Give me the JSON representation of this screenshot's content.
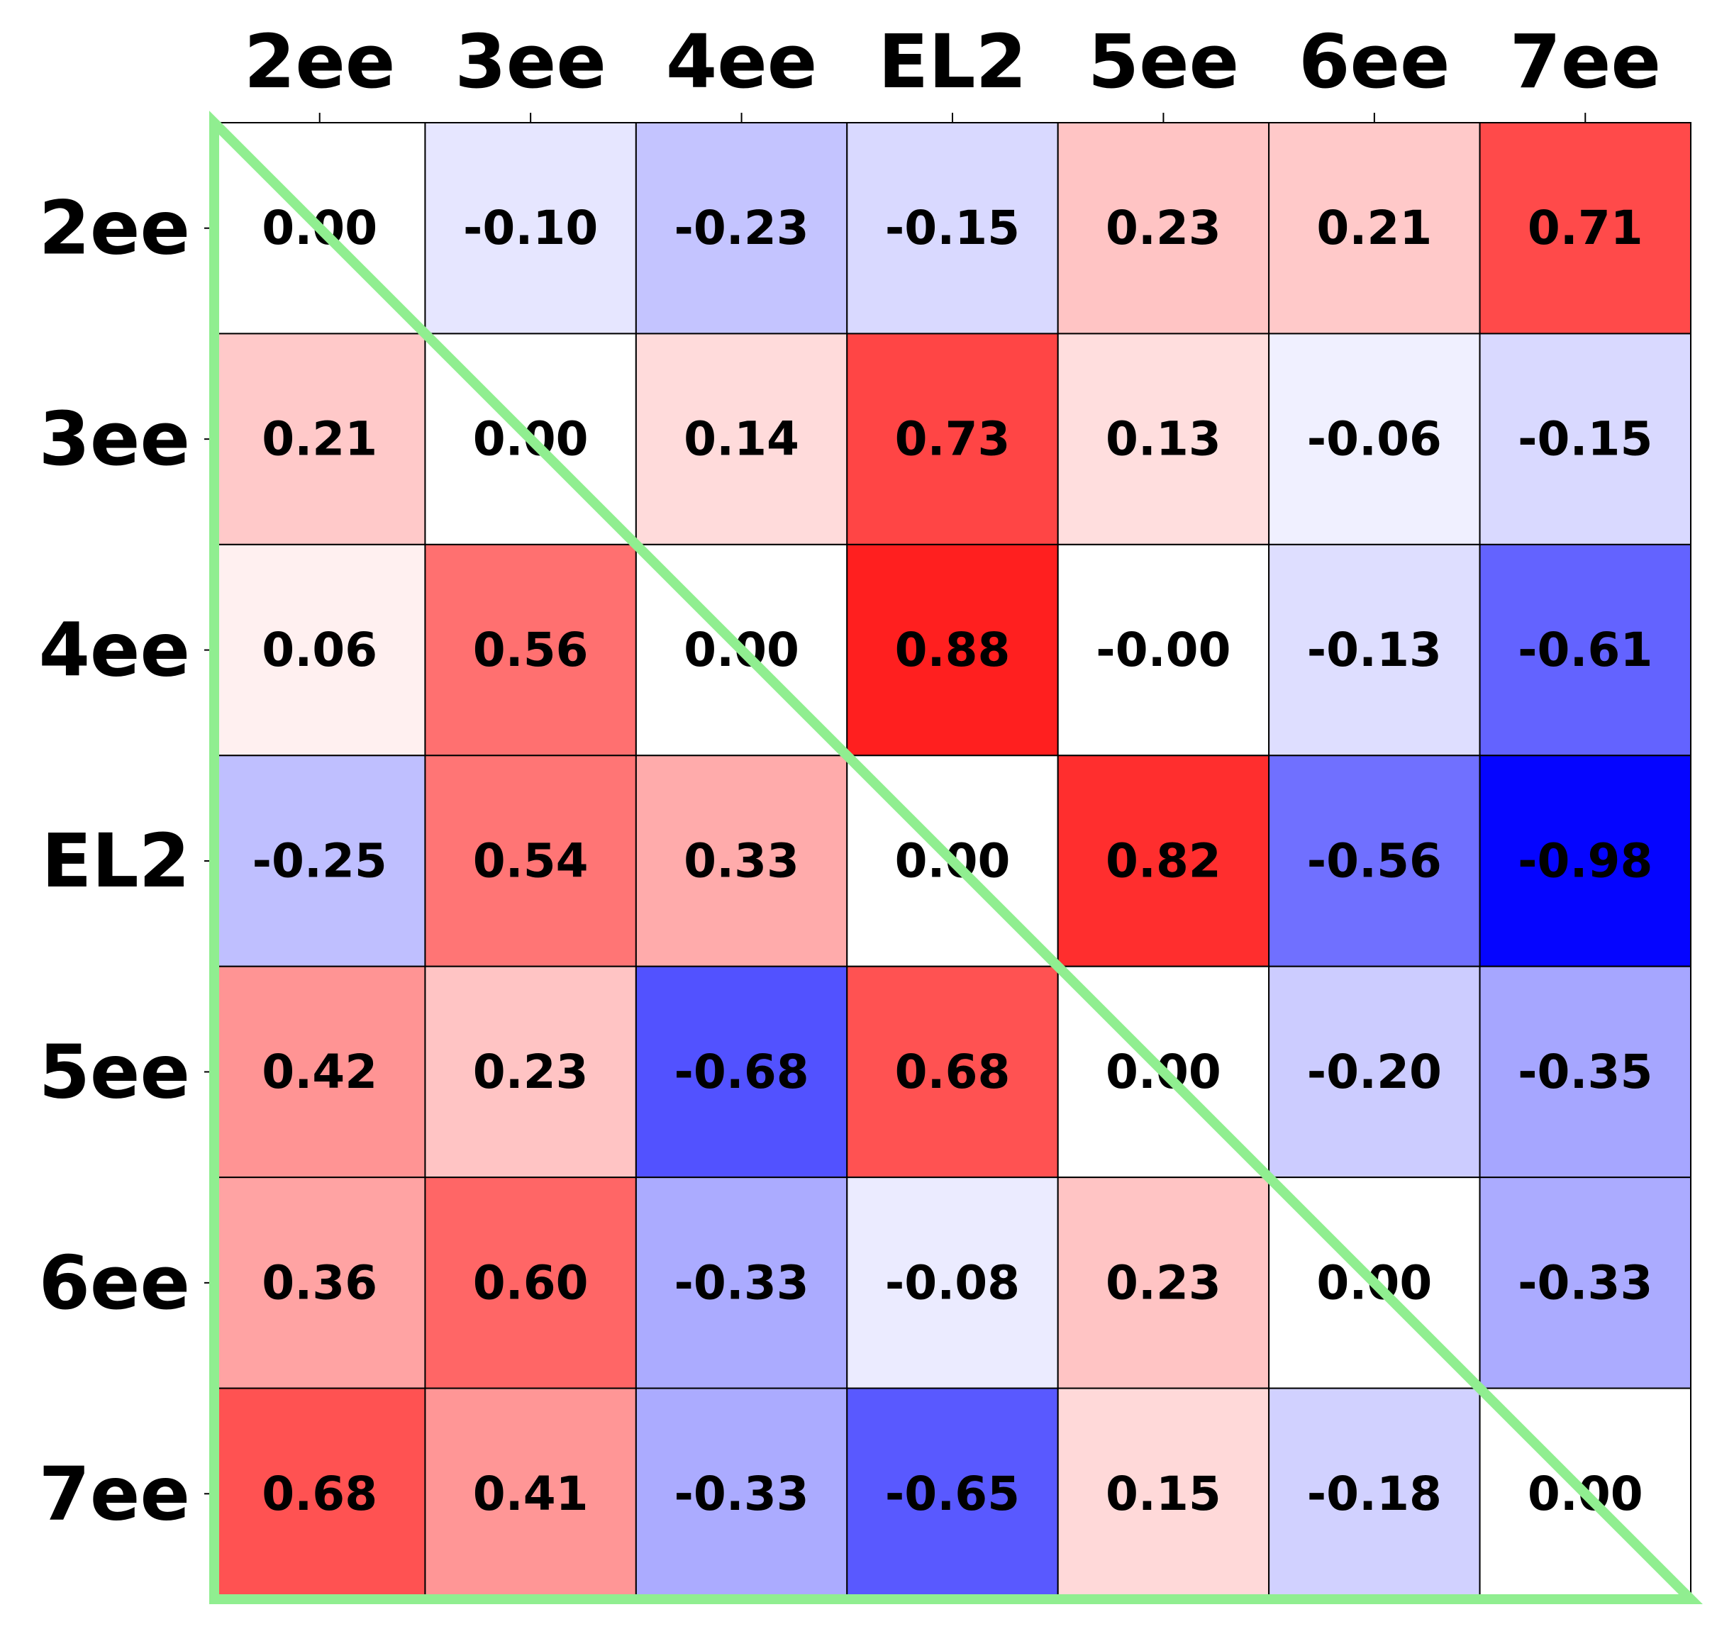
{
  "chart_data": {
    "type": "heatmap",
    "title": "",
    "xlabel": "",
    "ylabel": "",
    "x_categories": [
      "2ee",
      "3ee",
      "4ee",
      "EL2",
      "5ee",
      "6ee",
      "7ee"
    ],
    "y_categories": [
      "2ee",
      "3ee",
      "4ee",
      "EL2",
      "5ee",
      "6ee",
      "7ee"
    ],
    "x_tick_position": "top",
    "values": [
      [
        0.0,
        -0.1,
        -0.23,
        -0.15,
        0.23,
        0.21,
        0.71
      ],
      [
        0.21,
        0.0,
        0.14,
        0.73,
        0.13,
        -0.06,
        -0.15
      ],
      [
        0.06,
        0.56,
        0.0,
        0.88,
        -0.0,
        -0.13,
        -0.61
      ],
      [
        -0.25,
        0.54,
        0.33,
        0.0,
        0.82,
        -0.56,
        -0.98
      ],
      [
        0.42,
        0.23,
        -0.68,
        0.68,
        0.0,
        -0.2,
        -0.35
      ],
      [
        0.36,
        0.6,
        -0.33,
        -0.08,
        0.23,
        0.0,
        -0.33
      ],
      [
        0.68,
        0.41,
        -0.33,
        -0.65,
        0.15,
        -0.18,
        0.0
      ]
    ],
    "value_labels": [
      [
        "0.00",
        "-0.10",
        "-0.23",
        "-0.15",
        "0.23",
        "0.21",
        "0.71"
      ],
      [
        "0.21",
        "0.00",
        "0.14",
        "0.73",
        "0.13",
        "-0.06",
        "-0.15"
      ],
      [
        "0.06",
        "0.56",
        "0.00",
        "0.88",
        "-0.00",
        "-0.13",
        "-0.61"
      ],
      [
        "-0.25",
        "0.54",
        "0.33",
        "0.00",
        "0.82",
        "-0.56",
        "-0.98"
      ],
      [
        "0.42",
        "0.23",
        "-0.68",
        "0.68",
        "0.00",
        "-0.20",
        "-0.35"
      ],
      [
        "0.36",
        "0.60",
        "-0.33",
        "-0.08",
        "0.23",
        "0.00",
        "-0.33"
      ],
      [
        "0.68",
        "0.41",
        "-0.33",
        "-0.65",
        "0.15",
        "-0.18",
        "0.00"
      ]
    ],
    "color_range": [
      -1,
      1
    ],
    "colormap": "bwr",
    "colors": {
      "negative": "#0000ff",
      "neutral": "#ffffff",
      "positive": "#ff0000",
      "overlay": "#90ee90",
      "cell_border": "#000000"
    },
    "overlay": "triangle outline spanning the full grid with its diagonal from top-left to bottom-right",
    "grid": false,
    "legend": "none"
  }
}
